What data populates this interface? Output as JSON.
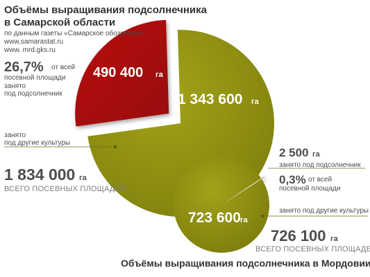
{
  "chart_data": [
    {
      "type": "pie",
      "title": "Объёмы выращивания подсолнечника в Самарской области",
      "source_lines": [
        "по данным газеты «Самарское обозрение»,",
        "www.samarastat.ru",
        "www. mrd.gks.ru"
      ],
      "unit": "га",
      "total": {
        "value": "1 834 000",
        "unit": "га",
        "label": "ВСЕГО ПОСЕВНЫХ ПЛОЩАДЕЙ"
      },
      "share": {
        "value": "26,7%",
        "text_line1": "от всей",
        "text_line2": "посевной площади"
      },
      "categories": [
        "занято под подсолнечник",
        "занято под другие культуры"
      ],
      "values": [
        490400,
        1343600
      ],
      "value_labels": [
        "490 400",
        "1 343 600"
      ],
      "label_lines": [
        [
          "занято",
          "под подсолнечник"
        ],
        [
          "занято",
          "под другие культуры"
        ]
      ],
      "colors": [
        "#a80e0e",
        "#8f8f10"
      ]
    },
    {
      "type": "pie",
      "title": "Объёмы выращивания подсолнечника в Мордовии",
      "unit": "га",
      "total": {
        "value": "726 100",
        "unit": "га",
        "label": "ВСЕГО ПОСЕВНЫХ ПЛОЩАДЕЙ"
      },
      "share": {
        "value": "0,3%",
        "text_line1": "от всей",
        "text_line2": "посевной площади"
      },
      "categories": [
        "занято под подсолнечник",
        "занято под другие культуры"
      ],
      "values": [
        2500,
        723600
      ],
      "value_labels": [
        "2 500",
        "723 600"
      ],
      "label_lines": [
        [
          "занято под подсолнечник"
        ],
        [
          "занято под другие культуры"
        ]
      ],
      "colors": [
        "#a80e0e",
        "#8f8f10"
      ]
    }
  ]
}
